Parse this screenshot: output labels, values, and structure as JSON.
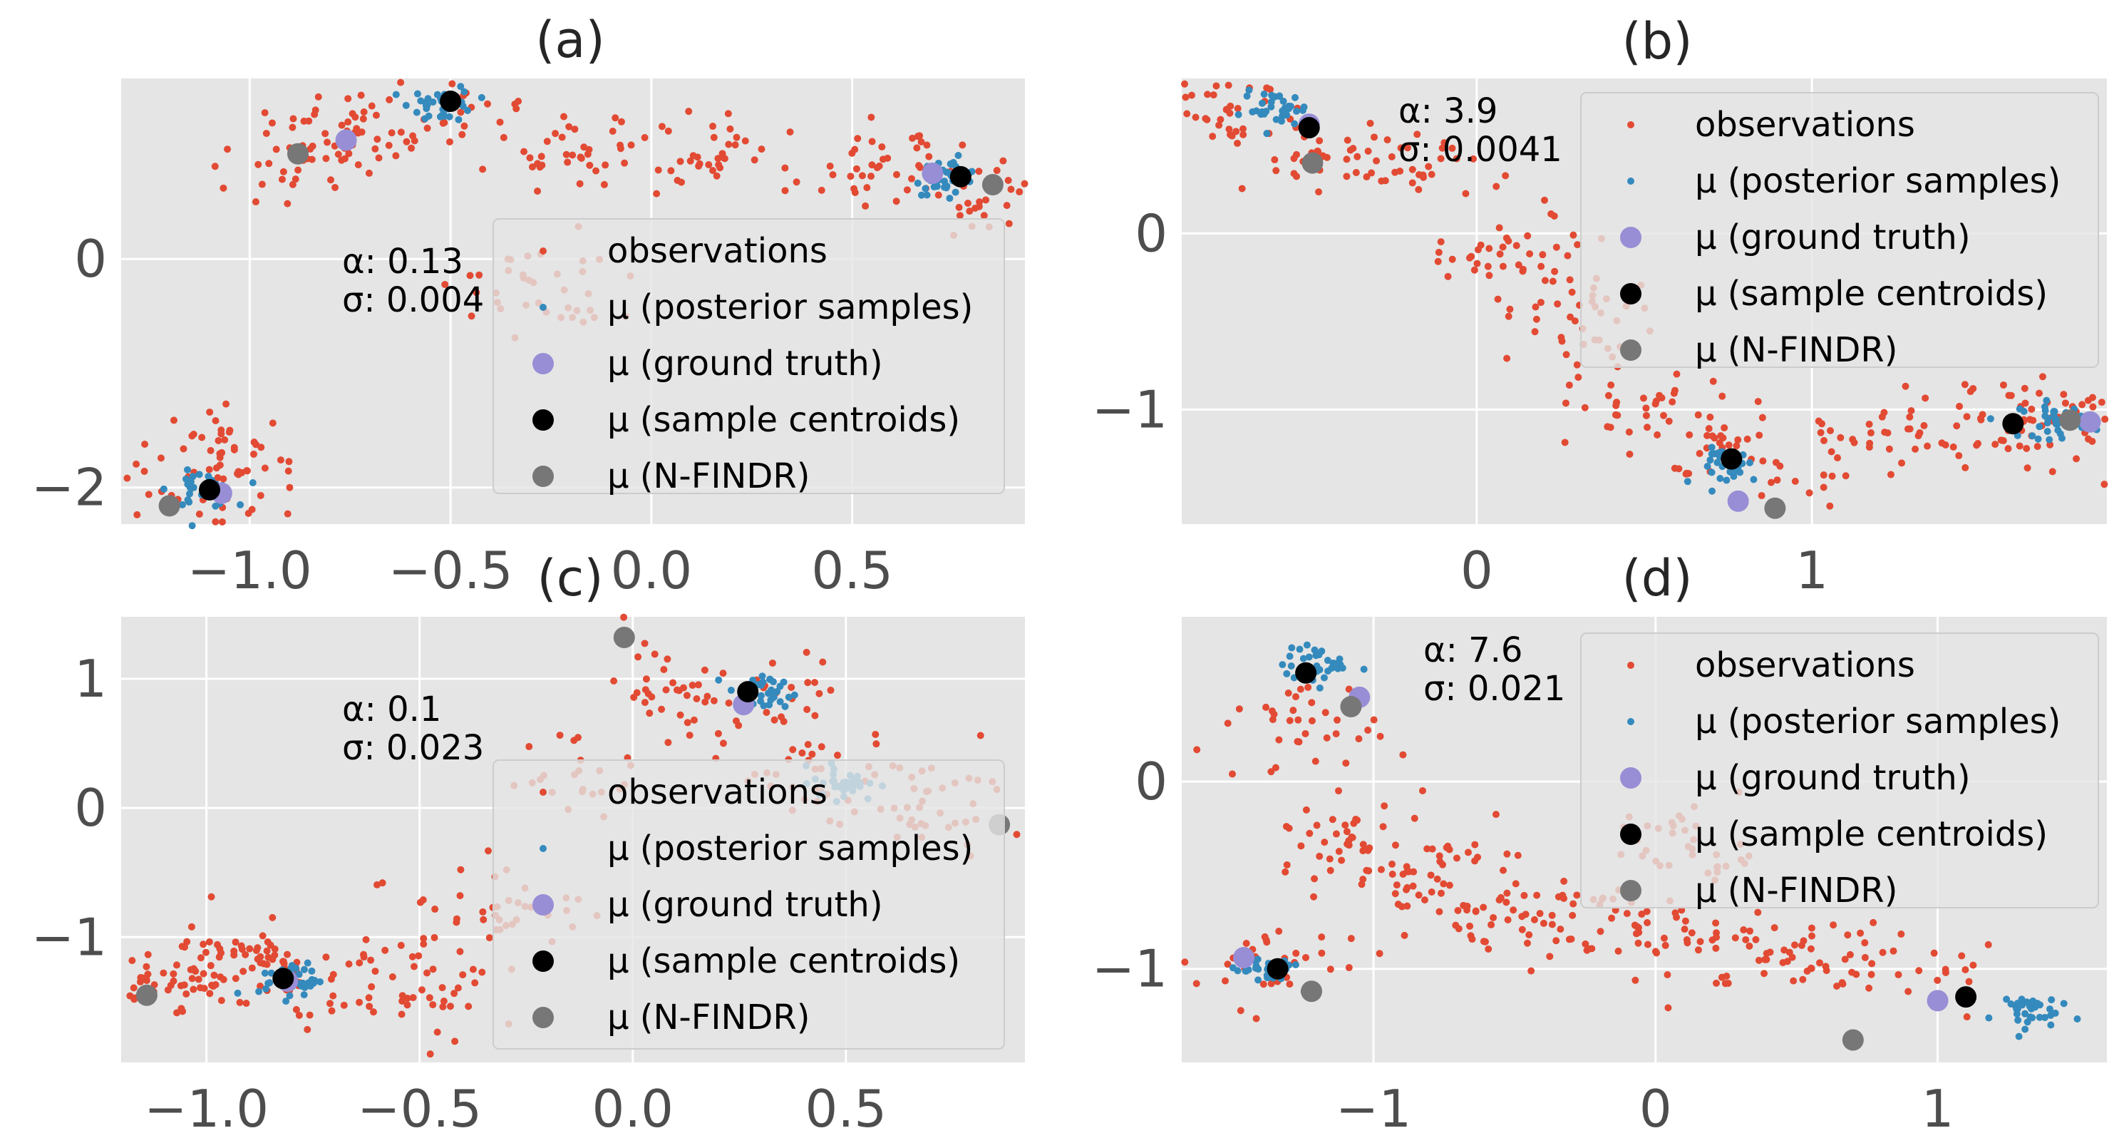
{
  "colors": {
    "background": "#e5e5e5",
    "grid": "#ffffff",
    "observations": "#e24a33",
    "posterior": "#348abd",
    "ground_truth": "#988ed5",
    "centroid": "#000000",
    "nfindr": "#777777"
  },
  "legend_labels": {
    "observations": "observations",
    "posterior": "μ (posterior samples)",
    "ground_truth": "μ (ground truth)",
    "centroid": "μ (sample centroids)",
    "nfindr": "μ (N-FINDR)"
  },
  "chart_data": [
    {
      "panel": "a",
      "type": "scatter",
      "title": "(a)",
      "xlim": [
        -1.32,
        0.93
      ],
      "ylim": [
        -2.32,
        1.58
      ],
      "xticks": [
        -1.0,
        -0.5,
        0.0,
        0.5
      ],
      "xtick_labels": [
        "−1.0",
        "−0.5",
        "0.0",
        "0.5"
      ],
      "yticks": [
        0,
        -2
      ],
      "ytick_labels": [
        "0",
        "−2"
      ],
      "grid": true,
      "legend_location": "center-right",
      "annotation": {
        "alpha": "α: 0.13",
        "sigma": "σ: 0.004"
      },
      "observation_shape": [
        [
          -1.12,
          -2.12
        ],
        [
          -0.88,
          0.95
        ],
        [
          -0.78,
          1.05
        ],
        [
          -0.5,
          1.32
        ],
        [
          -0.2,
          0.95
        ],
        [
          0.2,
          0.9
        ],
        [
          0.55,
          0.82
        ],
        [
          0.85,
          0.62
        ],
        [
          -0.3,
          -0.3
        ],
        [
          -1.05,
          -1.7
        ]
      ],
      "ground_truth": [
        [
          -0.76,
          1.04
        ],
        [
          0.7,
          0.75
        ],
        [
          -1.07,
          -2.05
        ]
      ],
      "sample_centroids": [
        [
          -0.5,
          1.38
        ],
        [
          0.77,
          0.72
        ],
        [
          -1.1,
          -2.02
        ]
      ],
      "nfindr": [
        [
          -0.88,
          0.92
        ],
        [
          0.85,
          0.65
        ],
        [
          -1.2,
          -2.16
        ]
      ],
      "posterior_centers": [
        [
          -0.52,
          1.36
        ],
        [
          0.74,
          0.72
        ],
        [
          -1.12,
          -2.02
        ]
      ]
    },
    {
      "panel": "b",
      "type": "scatter",
      "title": "(b)",
      "xlim": [
        -0.88,
        1.88
      ],
      "ylim": [
        -1.65,
        0.88
      ],
      "xticks": [
        0,
        1
      ],
      "xtick_labels": [
        "0",
        "1"
      ],
      "yticks": [
        0,
        -1
      ],
      "ytick_labels": [
        "0",
        "−1"
      ],
      "grid": true,
      "legend_location": "upper-right",
      "annotation": {
        "alpha": "α: 3.9",
        "sigma": "σ: 0.0041"
      },
      "observation_shape": [
        [
          -0.8,
          0.72
        ],
        [
          -0.5,
          0.5
        ],
        [
          -0.2,
          0.35
        ],
        [
          0.1,
          -0.1
        ],
        [
          0.3,
          -0.5
        ],
        [
          0.5,
          -1.0
        ],
        [
          0.76,
          -1.25
        ],
        [
          1.1,
          -1.2
        ],
        [
          1.45,
          -1.1
        ],
        [
          1.7,
          -1.05
        ]
      ],
      "ground_truth": [
        [
          -0.5,
          0.62
        ],
        [
          0.78,
          -1.52
        ],
        [
          1.83,
          -1.07
        ]
      ],
      "sample_centroids": [
        [
          -0.5,
          0.6
        ],
        [
          0.76,
          -1.28
        ],
        [
          1.6,
          -1.08
        ]
      ],
      "nfindr": [
        [
          -0.49,
          0.4
        ],
        [
          0.89,
          -1.56
        ],
        [
          1.77,
          -1.06
        ]
      ],
      "posterior_centers": [
        [
          -0.6,
          0.7
        ],
        [
          0.77,
          -1.32
        ],
        [
          1.72,
          -1.06
        ]
      ]
    },
    {
      "panel": "c",
      "type": "scatter",
      "title": "(c)",
      "xlim": [
        -1.2,
        0.92
      ],
      "ylim": [
        -1.97,
        1.48
      ],
      "xticks": [
        -1.0,
        -0.5,
        0.0,
        0.5
      ],
      "xtick_labels": [
        "−1.0",
        "−0.5",
        "0.0",
        "0.5"
      ],
      "yticks": [
        1,
        0,
        -1
      ],
      "ytick_labels": [
        "1",
        "0",
        "−1"
      ],
      "grid": true,
      "legend_location": "lower-right",
      "annotation": {
        "alpha": "α: 0.1",
        "sigma": "σ: 0.023"
      },
      "observation_shape": [
        [
          -1.1,
          -1.35
        ],
        [
          -0.8,
          -1.3
        ],
        [
          -0.55,
          -1.5
        ],
        [
          -0.3,
          -0.8
        ],
        [
          -0.1,
          0.2
        ],
        [
          0.1,
          0.9
        ],
        [
          0.3,
          0.8
        ],
        [
          0.45,
          0.3
        ],
        [
          0.7,
          0.0
        ],
        [
          -0.95,
          -1.2
        ]
      ],
      "ground_truth": [
        [
          0.26,
          0.8
        ],
        [
          -0.81,
          -1.34
        ]
      ],
      "sample_centroids": [
        [
          0.27,
          0.9
        ],
        [
          -0.82,
          -1.32
        ]
      ],
      "nfindr": [
        [
          -0.02,
          1.32
        ],
        [
          0.86,
          -0.13
        ],
        [
          -1.14,
          -1.45
        ]
      ],
      "posterior_centers": [
        [
          0.3,
          0.88
        ],
        [
          0.5,
          0.2
        ],
        [
          -0.8,
          -1.33
        ]
      ]
    },
    {
      "panel": "d",
      "type": "scatter",
      "title": "(d)",
      "xlim": [
        -1.68,
        1.6
      ],
      "ylim": [
        -1.5,
        0.88
      ],
      "xticks": [
        -1,
        0,
        1
      ],
      "xtick_labels": [
        "−1",
        "0",
        "1"
      ],
      "yticks": [
        0,
        -1
      ],
      "ytick_labels": [
        "0",
        "−1"
      ],
      "grid": true,
      "legend_location": "upper-right",
      "annotation": {
        "alpha": "α: 7.6",
        "sigma": "σ: 0.021"
      },
      "observation_shape": [
        [
          -1.35,
          -0.95
        ],
        [
          -1.1,
          -0.3
        ],
        [
          -0.8,
          -0.5
        ],
        [
          -0.5,
          -0.7
        ],
        [
          -0.2,
          -0.75
        ],
        [
          0.2,
          -0.85
        ],
        [
          0.5,
          -0.9
        ],
        [
          0.9,
          -1.05
        ],
        [
          -1.25,
          0.3
        ],
        [
          0.1,
          -0.3
        ]
      ],
      "ground_truth": [
        [
          -1.05,
          0.45
        ],
        [
          -1.46,
          -0.94
        ],
        [
          1.0,
          -1.17
        ]
      ],
      "sample_centroids": [
        [
          -1.24,
          0.58
        ],
        [
          -1.34,
          -1.0
        ],
        [
          1.1,
          -1.15
        ]
      ],
      "nfindr": [
        [
          -1.08,
          0.4
        ],
        [
          -1.22,
          -1.12
        ],
        [
          0.7,
          -1.38
        ]
      ],
      "posterior_centers": [
        [
          -1.2,
          0.62
        ],
        [
          -1.38,
          -1.0
        ],
        [
          1.3,
          -1.22
        ]
      ]
    }
  ]
}
